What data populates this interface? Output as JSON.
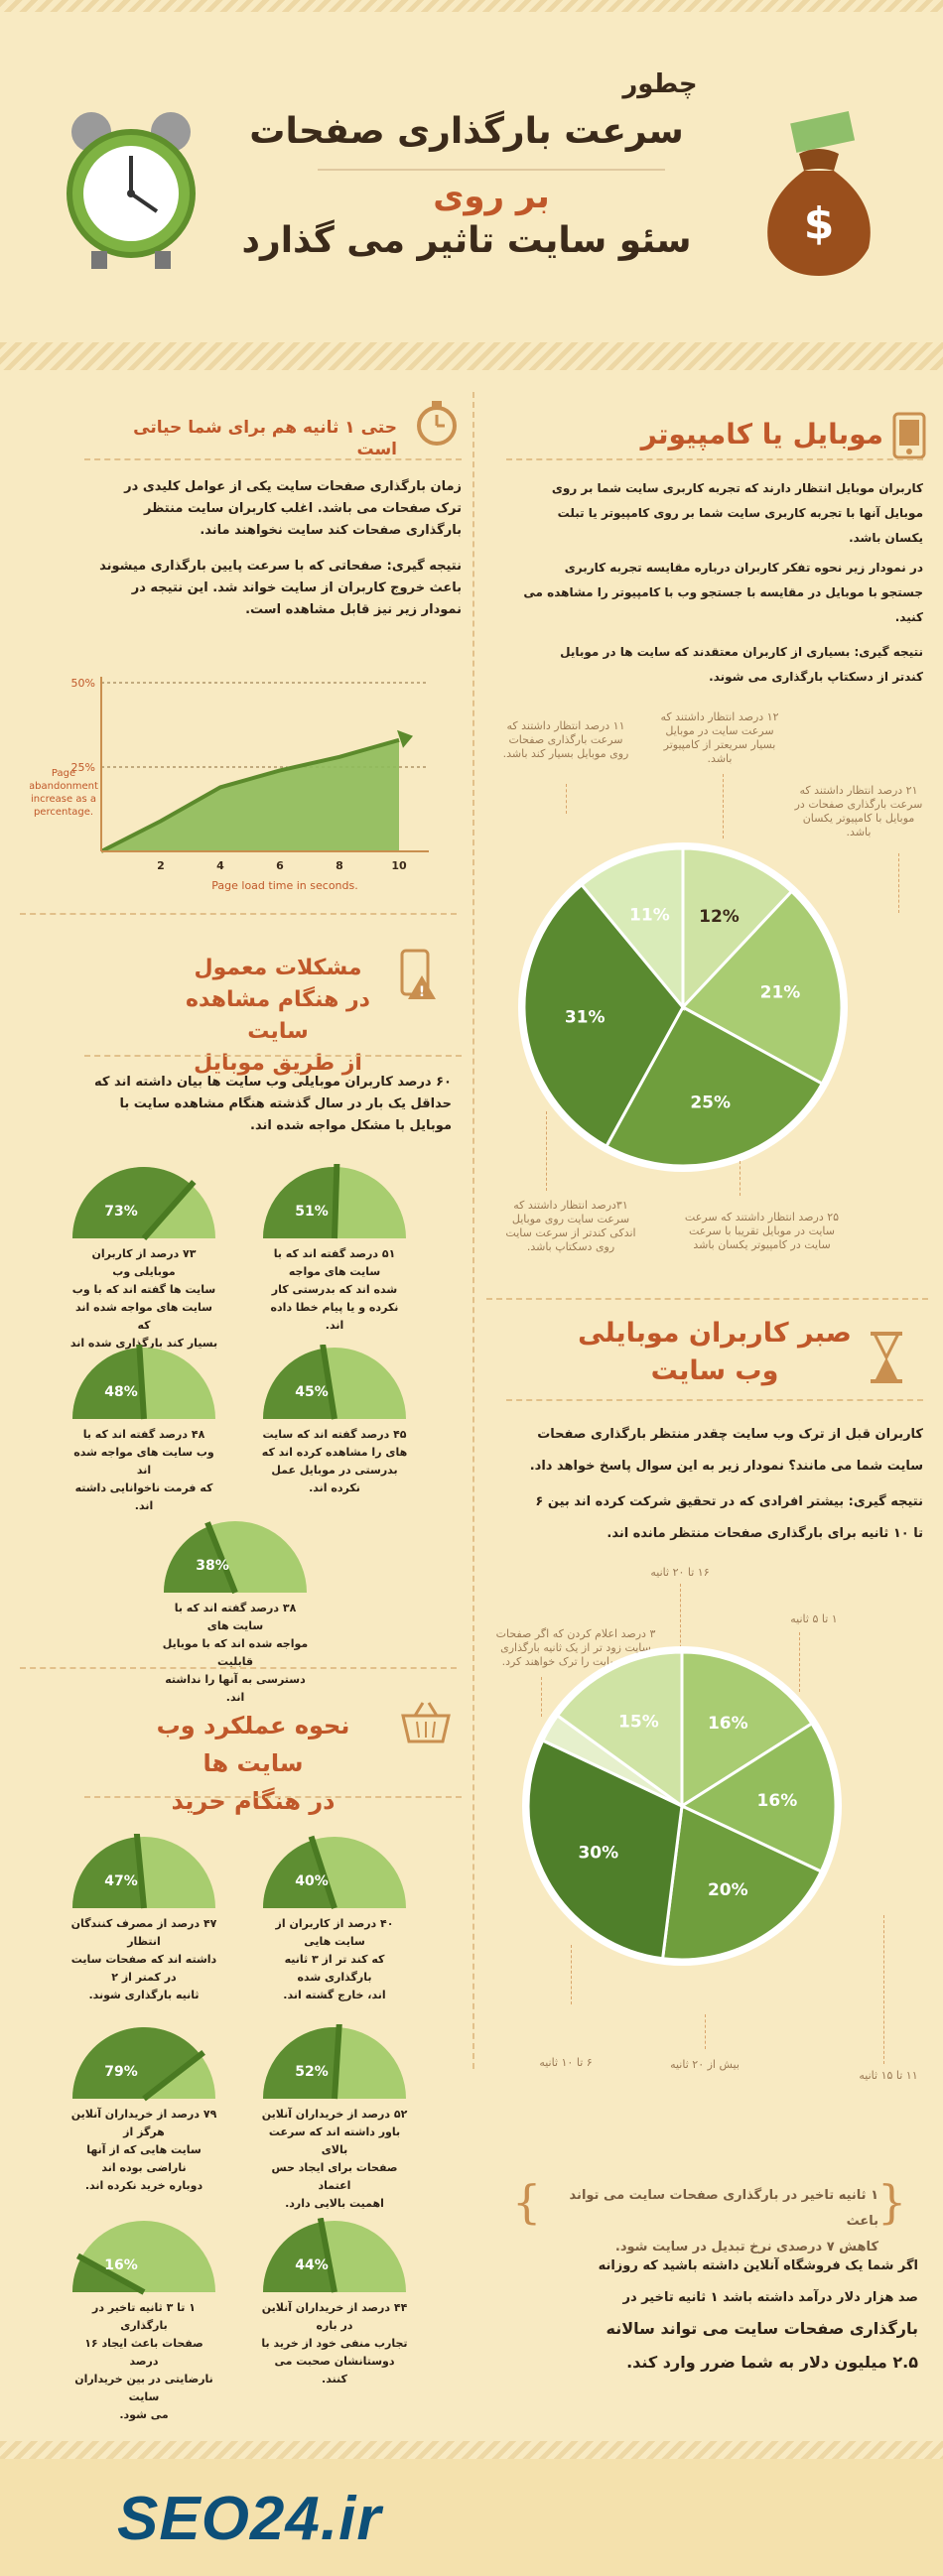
{
  "header": {
    "line1": "چطور",
    "line2": "سرعت بارگذاری صفحات",
    "line3": "بر روی",
    "line4": "سئو سایت تاثیر می گذارد"
  },
  "left1": {
    "title": "حتی ۱ ثانیه هم برای شما حیاتی است",
    "p1": [
      "زمان بارگذاری صفحات سایت یکی از عوامل کلیدی در",
      "ترک صفحات می باشد. اغلب کاربران سایت منتظر",
      "بارگذاری صفحات کند سایت نخواهند ماند."
    ],
    "p2": [
      "نتیجه گیری: صفحاتی که با سرعت پایین بارگذاری میشوند",
      "باعث خروج کاربران از سایت خواند شد. این نتیجه در",
      "نمودار زیر نیز قابل مشاهده است."
    ]
  },
  "chart_data": {
    "type": "area",
    "x": [
      0,
      2,
      4,
      6,
      8,
      10
    ],
    "y": [
      0,
      9,
      19,
      24,
      28,
      33
    ],
    "xticks": [
      "2",
      "4",
      "6",
      "8",
      "10"
    ],
    "yticks": [
      "25%",
      "50%"
    ],
    "ylim": [
      0,
      50
    ],
    "xlim": [
      0,
      11
    ],
    "xlabel": "Page load time in seconds.",
    "ylabel": "Page abandonment increase as a percentage.",
    "color": "#8dbb5a"
  },
  "left2": {
    "title": [
      "مشکلات معمول",
      "در هنگام مشاهده سایت",
      "از طریق موبایل"
    ],
    "intro": [
      "۶۰ درصد کاربران موبایلی وب سایت ها بیان داشته اند که",
      "حداقل یک بار در سال گذشته هنگام مشاهده سایت با",
      "موبایل با مشکل مواجه شده اند."
    ],
    "gauges": [
      {
        "pct": "73%",
        "value": 73,
        "caption": [
          "۷۳ درصد از کاربران موبایلی وب",
          "سایت ها گفته اند که با وب",
          "سایت های مواجه شده اند که",
          "بسیار کند بارگذاری شده اند"
        ]
      },
      {
        "pct": "51%",
        "value": 51,
        "caption": [
          "۵۱ درصد گفته اند که با",
          "سایت های مواجه",
          "شده اند که بدرستی کار",
          "نکرده و یا پیام خطا داده اند."
        ]
      },
      {
        "pct": "48%",
        "value": 48,
        "caption": [
          "۴۸ درصد گفته اند که با",
          "وب سایت های مواجه شده اند",
          "که فرمت ناخوانایی داشته اند."
        ]
      },
      {
        "pct": "45%",
        "value": 45,
        "caption": [
          "۴۵ درصد گفته اند که سایت",
          "های را مشاهده کرده اند که",
          "بدرستی در موبایل عمل",
          "نکرده اند."
        ]
      },
      {
        "pct": "38%",
        "value": 38,
        "caption": [
          "۳۸ درصد گفته اند که با سایت های",
          "مواجه شده اند که با موبایل قابلیت",
          "دسترسی به آنها را نداشته اند."
        ]
      }
    ]
  },
  "left3": {
    "title": [
      "نحوه عملکرد وب سایت ها",
      "در هنگام خرید"
    ],
    "gauges": [
      {
        "pct": "47%",
        "value": 47,
        "caption": [
          "۴۷ درصد از مصرف کنندگان انتظار",
          "داشته اند که صفحات سایت در کمتر از ۲",
          "ثانیه بارگذاری شوند."
        ]
      },
      {
        "pct": "40%",
        "value": 40,
        "caption": [
          "۴۰ درصد از کاربران از سایت هایی",
          "که کند تر از ۳ ثانیه بارگذاری شده",
          "اند، خارج گشته اند."
        ]
      },
      {
        "pct": "79%",
        "value": 79,
        "caption": [
          "۷۹ درصد از خریداران آنلاین هرگز از",
          "سایت هایی که از آنها ناراضی بوده اند",
          "دوباره خرید نکرده اند."
        ]
      },
      {
        "pct": "52%",
        "value": 52,
        "caption": [
          "۵۲ درصد از خریداران آنلاین",
          "باور داشته اند که سرعت بالای",
          "صفحات برای ایجاد حس اعتماد",
          "اهمیت بالایی دارد."
        ]
      },
      {
        "pct": "16%",
        "value": 16,
        "caption": [
          "۱ تا ۳ ثانیه تاخیر در بارگذاری",
          "صفحات باعث ایجاد ۱۶ درصد",
          "نارضایتی در بین خریداران سایت",
          "می شود."
        ]
      },
      {
        "pct": "44%",
        "value": 44,
        "caption": [
          "۴۴ درصد از خریداران آنلاین در باره",
          "تجارب منفی خود از خرید با",
          "دوستانشان صحبت می کنند."
        ]
      }
    ]
  },
  "right1": {
    "title": "موبایل یا کامپیوتر",
    "p1": [
      "کاربران موبایل انتظار دارند که تجربه کاربری سایت شما بر روی",
      "موبایل آنها با تجربه کاربری سایت شما بر روی کامپیوتر یا تبلت",
      "یکسان باشد."
    ],
    "p2": [
      "در نمودار زیر نحوه تفکر کاربران درباره مقایسه تجربه کاربری",
      "جستجو با موبایل در مقایسه با جستجو وب با کامپیوتر را مشاهده می",
      "کنید."
    ],
    "p3": [
      "نتیجه گیری: بسیاری از کاربران معتقدند که سایت ها در موبایل",
      "کندتر از دسکتاپ بارگذاری می شوند."
    ],
    "pie": {
      "slices": [
        {
          "label": "12%",
          "value": 12,
          "color": "#cfe3a4"
        },
        {
          "label": "21%",
          "value": 21,
          "color": "#a9cc72"
        },
        {
          "label": "25%",
          "value": 25,
          "color": "#6f9e3d"
        },
        {
          "label": "31%",
          "value": 31,
          "color": "#5a8a30"
        },
        {
          "label": "11%",
          "value": 11,
          "color": "#d9ebb8"
        }
      ]
    },
    "notes": {
      "n11": [
        "۱۱ درصد انتظار داشتند که",
        "سرعت بارگذاری صفحات",
        "روی موبایل بسیار کند باشد."
      ],
      "n12": [
        "۱۲ درصد انتظار داشتند که",
        "سرعت سایت در موبایل",
        "بسیار سریعتر از کامپیوتر",
        "باشد."
      ],
      "n21": [
        "۲۱ درصد انتظار داشتند که",
        "سرعت بارگذاری صفحات در",
        "موبایل با کامپیوتر یکسان",
        "باشد."
      ],
      "n31": [
        "۳۱درصد انتظار داشتند که",
        "سرعت سایت روی موبایل",
        "اندکی کندتر از سرعت سایت",
        "روی دسکتاپ باشد."
      ],
      "n25": [
        "۲۵ درصد انتظار داشتند که سرعت",
        "سایت در موبایل تقریبا با سرعت",
        "سایت در کامپیوتر یکسان باشد"
      ]
    }
  },
  "right2": {
    "title": [
      "صبر کاربران موبایلی",
      "وب سایت"
    ],
    "p1": [
      "کاربران قبل از ترک وب سایت چقدر منتظر بارگذاری صفحات",
      "سایت شما می مانند؟ نمودار زیر به این سوال پاسخ خواهد داد."
    ],
    "p2": [
      "نتیجه گیری: بیشتر افرادی که در تحقیق شرکت کرده اند بین ۶",
      "تا ۱۰ ثانیه برای بارگذاری صفحات منتظر مانده اند."
    ],
    "pie": {
      "slices": [
        {
          "label": "16%",
          "value": 16,
          "color": "#a9cc72"
        },
        {
          "label": "16%",
          "value": 16,
          "color": "#93bd5c"
        },
        {
          "label": "20%",
          "value": 20,
          "color": "#6f9e3d"
        },
        {
          "label": "30%",
          "value": 30,
          "color": "#4f7f2a"
        },
        {
          "label": "",
          "value": 3,
          "color": "#e6f0cc"
        },
        {
          "label": "15%",
          "value": 15,
          "color": "#cfe3a4"
        }
      ]
    },
    "notes": {
      "t1620": "۱۶ تا ۲۰ ثانیه",
      "t15": "۱ تا ۵ ثانیه",
      "t3p": [
        "۳ درصد اعلام کردن که اگر صفحات",
        "سایت زود تر از یک ثانیه بارگذاری",
        "نشوند سایت را ترک خواهند کرد."
      ],
      "t610": "۶ تا ۱۰ ثانیه",
      "t20p": "بیش از ۲۰ ثانیه",
      "t1115": "۱۱ تا ۱۵ ثانیه"
    }
  },
  "bottom": {
    "quote": [
      "۱ ثانیه تاخیر در بارگذاری صفحات سایت می تواند باعث",
      "کاهش ۷ درصدی نرخ تبدیل در سایت شود."
    ],
    "p1": [
      "اگر شما یک فروشگاه آنلاین داشته باشید که روزانه",
      "صد هزار دلار درآمد داشته باشد ۱ ثانیه تاخیر در"
    ],
    "p2": [
      "بارگذاری صفحات سایت می تواند سالانه",
      "۲.۵ میلیون دلار به شما ضرر وارد کند."
    ]
  },
  "footer": {
    "logo": "SEO24.ir"
  }
}
